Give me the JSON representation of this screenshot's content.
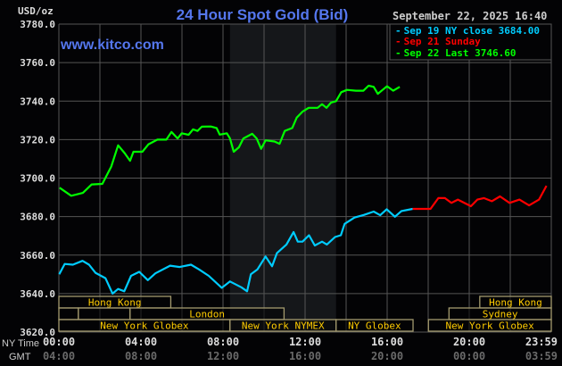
{
  "header": {
    "unit": "USD/oz",
    "title": "24 Hour Spot Gold (Bid)",
    "website": "www.kitco.com",
    "datetime": "September 22, 2025 16:40"
  },
  "legend": [
    {
      "label": "Sep 19 NY close 3684.00",
      "color": "#00ccff"
    },
    {
      "label": "Sep 21 Sunday",
      "color": "#ff0000"
    },
    {
      "label": "Sep 22 Last 3746.60",
      "color": "#00ff00"
    }
  ],
  "axis": {
    "y_ticks": [
      "3780.0",
      "3760.0",
      "3740.0",
      "3720.0",
      "3700.0",
      "3680.0",
      "3660.0",
      "3640.0",
      "3620.0"
    ],
    "ny_time_label": "NY Time",
    "gmt_label": "GMT",
    "ny_ticks": [
      "00:00",
      "04:00",
      "08:00",
      "12:00",
      "16:00",
      "20:00",
      "23:59"
    ],
    "gmt_ticks": [
      "04:00",
      "08:00",
      "12:00",
      "16:00",
      "20:00",
      "00:00",
      "03:59"
    ]
  },
  "sessions": {
    "row1": [
      {
        "label": "Hong Kong",
        "start": "00:00",
        "end": "05:27"
      },
      {
        "label": "Hong Kong",
        "start": "20:30",
        "end": "23:59"
      }
    ],
    "row2": [
      {
        "label": "",
        "start": "00:00",
        "end": "00:57"
      },
      {
        "label": "",
        "start": "00:57",
        "end": "03:28"
      },
      {
        "label": "London",
        "start": "03:28",
        "end": "10:58"
      },
      {
        "label": "Sydney",
        "start": "19:00",
        "end": "23:59"
      }
    ],
    "row3": [
      {
        "label": "New York Globex",
        "start": "00:00",
        "end": "08:20"
      },
      {
        "label": "New York NYMEX",
        "start": "08:20",
        "end": "13:30"
      },
      {
        "label": "NY Globex",
        "start": "13:30",
        "end": "17:15"
      },
      {
        "label": "New York Globex",
        "start": "18:00",
        "end": "23:59"
      }
    ]
  },
  "colors": {
    "background": "#030305",
    "grid": "#555555",
    "shade": "#15171a",
    "title": "#5577ee",
    "session_border": "#a39a6e",
    "session_text": "#ffcc00"
  },
  "chart_data": {
    "type": "line",
    "title": "24 Hour Spot Gold (Bid)",
    "ylabel": "USD/oz",
    "xlabel": "NY Time",
    "ylim": [
      3620,
      3780
    ],
    "xlim": [
      "00:00",
      "23:59"
    ],
    "grid": true,
    "legend_position": "top-right",
    "shaded_range": [
      "08:20",
      "13:30"
    ],
    "series": [
      {
        "name": "Sep 19 NY close 3684.00",
        "color": "#00ccff",
        "points": [
          [
            "00:01",
            3650
          ],
          [
            "00:17",
            3655.4
          ],
          [
            "00:41",
            3655
          ],
          [
            "01:09",
            3657
          ],
          [
            "01:28",
            3655
          ],
          [
            "01:47",
            3650.8
          ],
          [
            "02:16",
            3648
          ],
          [
            "02:37",
            3640
          ],
          [
            "02:53",
            3642.4
          ],
          [
            "03:11",
            3641.2
          ],
          [
            "03:31",
            3649.2
          ],
          [
            "03:55",
            3651.3
          ],
          [
            "04:20",
            3647
          ],
          [
            "04:42",
            3650.5
          ],
          [
            "05:25",
            3654.5
          ],
          [
            "05:53",
            3653.8
          ],
          [
            "06:26",
            3655
          ],
          [
            "06:50",
            3652.5
          ],
          [
            "07:18",
            3649.2
          ],
          [
            "07:56",
            3643
          ],
          [
            "08:20",
            3646.3
          ],
          [
            "08:53",
            3643.3
          ],
          [
            "09:10",
            3641.2
          ],
          [
            "09:21",
            3650
          ],
          [
            "09:40",
            3652.5
          ],
          [
            "10:04",
            3659.3
          ],
          [
            "10:23",
            3654.2
          ],
          [
            "10:37",
            3661
          ],
          [
            "11:05",
            3665.5
          ],
          [
            "11:26",
            3672
          ],
          [
            "11:38",
            3667
          ],
          [
            "11:52",
            3667
          ],
          [
            "12:11",
            3670.3
          ],
          [
            "12:28",
            3665
          ],
          [
            "12:49",
            3667
          ],
          [
            "13:03",
            3665.5
          ],
          [
            "13:27",
            3669.4
          ],
          [
            "13:44",
            3670.3
          ],
          [
            "13:55",
            3676.2
          ],
          [
            "14:24",
            3679.5
          ],
          [
            "14:52",
            3680.9
          ],
          [
            "15:20",
            3682.6
          ],
          [
            "15:39",
            3680.7
          ],
          [
            "15:58",
            3683.8
          ],
          [
            "16:22",
            3679.9
          ],
          [
            "16:41",
            3682.9
          ],
          [
            "17:14",
            3684
          ]
        ]
      },
      {
        "name": "Sep 21 Sunday",
        "color": "#ff0000",
        "points": [
          [
            "17:14",
            3684
          ],
          [
            "18:06",
            3684
          ],
          [
            "18:29",
            3689.6
          ],
          [
            "18:48",
            3689.6
          ],
          [
            "19:07",
            3687.1
          ],
          [
            "19:26",
            3688.8
          ],
          [
            "20:04",
            3685.4
          ],
          [
            "20:23",
            3688.8
          ],
          [
            "20:42",
            3689.6
          ],
          [
            "21:05",
            3688
          ],
          [
            "21:29",
            3690.5
          ],
          [
            "21:57",
            3687.1
          ],
          [
            "22:26",
            3688.8
          ],
          [
            "22:54",
            3685.8
          ],
          [
            "23:23",
            3688.8
          ],
          [
            "23:45",
            3696
          ]
        ]
      },
      {
        "name": "Sep 22 Last 3746.60",
        "color": "#00ff00",
        "points": [
          [
            "00:02",
            3695
          ],
          [
            "00:36",
            3690.8
          ],
          [
            "01:10",
            3692.3
          ],
          [
            "01:36",
            3696.7
          ],
          [
            "02:07",
            3697
          ],
          [
            "02:33",
            3706
          ],
          [
            "02:53",
            3717
          ],
          [
            "03:12",
            3713
          ],
          [
            "03:28",
            3709
          ],
          [
            "03:38",
            3713.7
          ],
          [
            "04:04",
            3713.7
          ],
          [
            "04:22",
            3717.6
          ],
          [
            "04:48",
            3720
          ],
          [
            "05:14",
            3720
          ],
          [
            "05:29",
            3724
          ],
          [
            "05:47",
            3720.6
          ],
          [
            "05:59",
            3723.3
          ],
          [
            "06:19",
            3722.5
          ],
          [
            "06:32",
            3725.3
          ],
          [
            "06:45",
            3724.5
          ],
          [
            "06:58",
            3726.7
          ],
          [
            "07:24",
            3726.8
          ],
          [
            "07:41",
            3726
          ],
          [
            "07:50",
            3722.6
          ],
          [
            "08:11",
            3723.3
          ],
          [
            "08:20",
            3720.6
          ],
          [
            "08:31",
            3713.7
          ],
          [
            "08:46",
            3716
          ],
          [
            "08:59",
            3720.6
          ],
          [
            "09:25",
            3723
          ],
          [
            "09:38",
            3720.6
          ],
          [
            "09:51",
            3715.2
          ],
          [
            "10:04",
            3719.6
          ],
          [
            "10:30",
            3719
          ],
          [
            "10:45",
            3717.8
          ],
          [
            "11:00",
            3724.5
          ],
          [
            "11:22",
            3726
          ],
          [
            "11:35",
            3731.4
          ],
          [
            "11:52",
            3734.5
          ],
          [
            "12:10",
            3736.5
          ],
          [
            "12:36",
            3736.5
          ],
          [
            "12:49",
            3738.4
          ],
          [
            "13:02",
            3736.5
          ],
          [
            "13:15",
            3739.2
          ],
          [
            "13:30",
            3740
          ],
          [
            "13:45",
            3744.6
          ],
          [
            "14:02",
            3745.8
          ],
          [
            "14:28",
            3745.4
          ],
          [
            "14:50",
            3745.4
          ],
          [
            "15:05",
            3748
          ],
          [
            "15:20",
            3747.4
          ],
          [
            "15:32",
            3743.8
          ],
          [
            "15:46",
            3745.8
          ],
          [
            "15:59",
            3747.7
          ],
          [
            "16:17",
            3745.4
          ],
          [
            "16:36",
            3747.4
          ]
        ]
      }
    ]
  }
}
